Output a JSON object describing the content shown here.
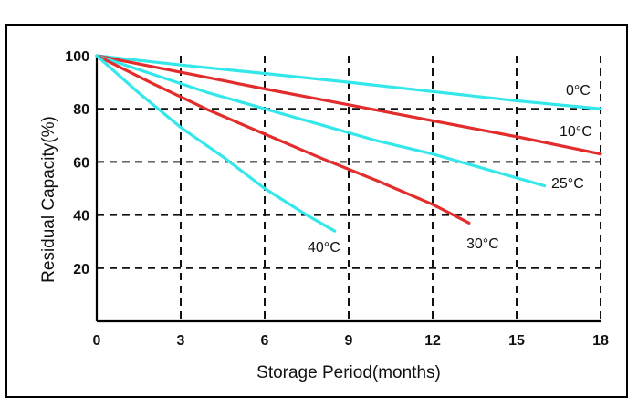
{
  "header_fragment": "",
  "chart_data": {
    "type": "line",
    "title": "",
    "xlabel": "Storage Period(months)",
    "ylabel": "Residual Capacity(%)",
    "xlim": [
      0,
      18
    ],
    "ylim": [
      0,
      100
    ],
    "xticks": [
      0,
      3,
      6,
      9,
      12,
      15,
      18
    ],
    "yticks": [
      20,
      40,
      60,
      80,
      100
    ],
    "grid": true,
    "grid_style": "dashed",
    "series": [
      {
        "name": "0°C",
        "color": "#33e7ea",
        "x": [
          0,
          3,
          6,
          9,
          12,
          15,
          18
        ],
        "y": [
          100,
          96.5,
          93.3,
          90,
          86.5,
          83,
          80
        ]
      },
      {
        "name": "10°C",
        "color": "#e32c2c",
        "x": [
          0,
          3,
          6,
          9,
          12,
          15,
          18
        ],
        "y": [
          100,
          93.8,
          87.5,
          81.5,
          75.5,
          69.5,
          63
        ]
      },
      {
        "name": "25°C",
        "color": "#33e7ea",
        "x": [
          0,
          2,
          4,
          6,
          8,
          10,
          12,
          14,
          16
        ],
        "y": [
          100,
          93,
          86,
          80,
          74,
          68,
          63,
          57,
          51
        ]
      },
      {
        "name": "30°C",
        "color": "#e32c2c",
        "x": [
          0,
          2,
          4,
          6,
          8,
          10,
          12,
          13.3
        ],
        "y": [
          100,
          89.5,
          79.5,
          70.5,
          61.5,
          53,
          44,
          37
        ]
      },
      {
        "name": "40°C",
        "color": "#33e7ea",
        "x": [
          0,
          1.5,
          3,
          4.5,
          6,
          7.5,
          8.5
        ],
        "y": [
          100,
          86,
          73,
          62,
          50,
          40,
          34
        ]
      }
    ]
  }
}
